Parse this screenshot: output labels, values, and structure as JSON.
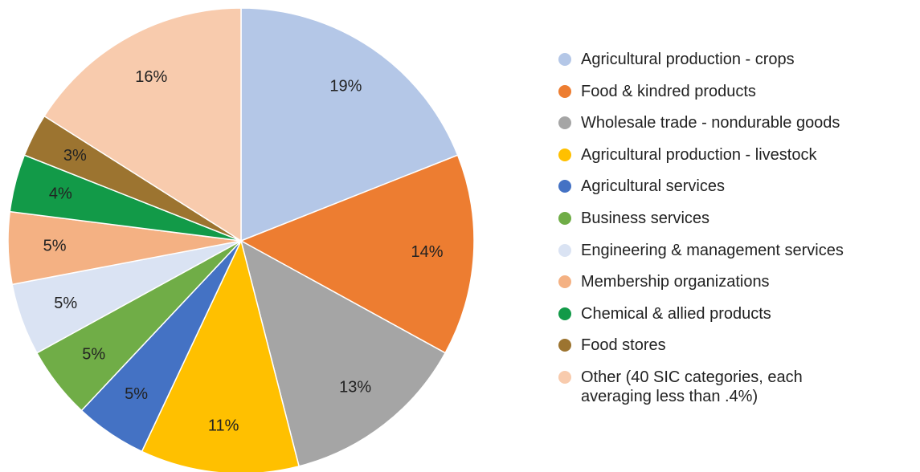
{
  "chart_data": {
    "type": "pie",
    "categories": [
      "Agricultural production - crops",
      "Food & kindred products",
      "Wholesale trade - nondurable goods",
      "Agricultural production - livestock",
      "Agricultural services",
      "Business services",
      "Engineering & management services",
      "Membership organizations",
      "Chemical & allied products",
      "Food stores",
      "Other (40 SIC categories, each averaging less than .4%)"
    ],
    "values": [
      19,
      14,
      13,
      11,
      5,
      5,
      5,
      5,
      4,
      3,
      16
    ],
    "value_labels": [
      "19%",
      "14%",
      "13%",
      "11%",
      "5%",
      "5%",
      "5%",
      "5%",
      "4%",
      "3%",
      "16%"
    ],
    "colors": [
      "#b4c7e7",
      "#ed7d31",
      "#a5a5a5",
      "#ffc000",
      "#4472c4",
      "#70ad47",
      "#dae3f3",
      "#f4b183",
      "#129a48",
      "#9c7430",
      "#f8cbad"
    ]
  }
}
